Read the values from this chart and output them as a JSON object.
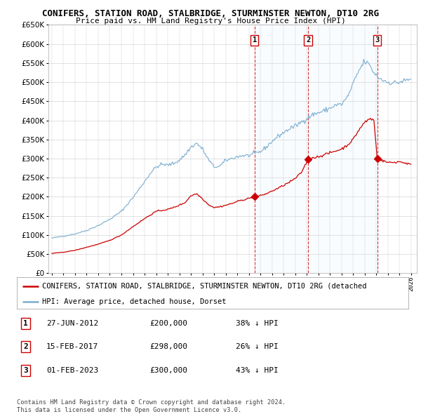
{
  "title": "CONIFERS, STATION ROAD, STALBRIDGE, STURMINSTER NEWTON, DT10 2RG",
  "subtitle": "Price paid vs. HM Land Registry's House Price Index (HPI)",
  "legend_line1": "CONIFERS, STATION ROAD, STALBRIDGE, STURMINSTER NEWTON, DT10 2RG (detached",
  "legend_line2": "HPI: Average price, detached house, Dorset",
  "sales": [
    {
      "label": "1",
      "date": "27-JUN-2012",
      "price": "£200,000",
      "pct": "38% ↓ HPI",
      "year": 2012.49
    },
    {
      "label": "2",
      "date": "15-FEB-2017",
      "price": "£298,000",
      "pct": "26% ↓ HPI",
      "year": 2017.12
    },
    {
      "label": "3",
      "date": "01-FEB-2023",
      "price": "£300,000",
      "pct": "43% ↓ HPI",
      "year": 2023.08
    }
  ],
  "sale_prices": [
    200000,
    298000,
    300000
  ],
  "footer": "Contains HM Land Registry data © Crown copyright and database right 2024.\nThis data is licensed under the Open Government Licence v3.0.",
  "red_color": "#cc0000",
  "blue_color": "#7aadcf",
  "shade_color": "#ddeeff",
  "background_color": "#ffffff",
  "grid_color": "#cccccc",
  "ylim": [
    0,
    650000
  ],
  "xmin": 1995.0,
  "xmax": 2026.5
}
